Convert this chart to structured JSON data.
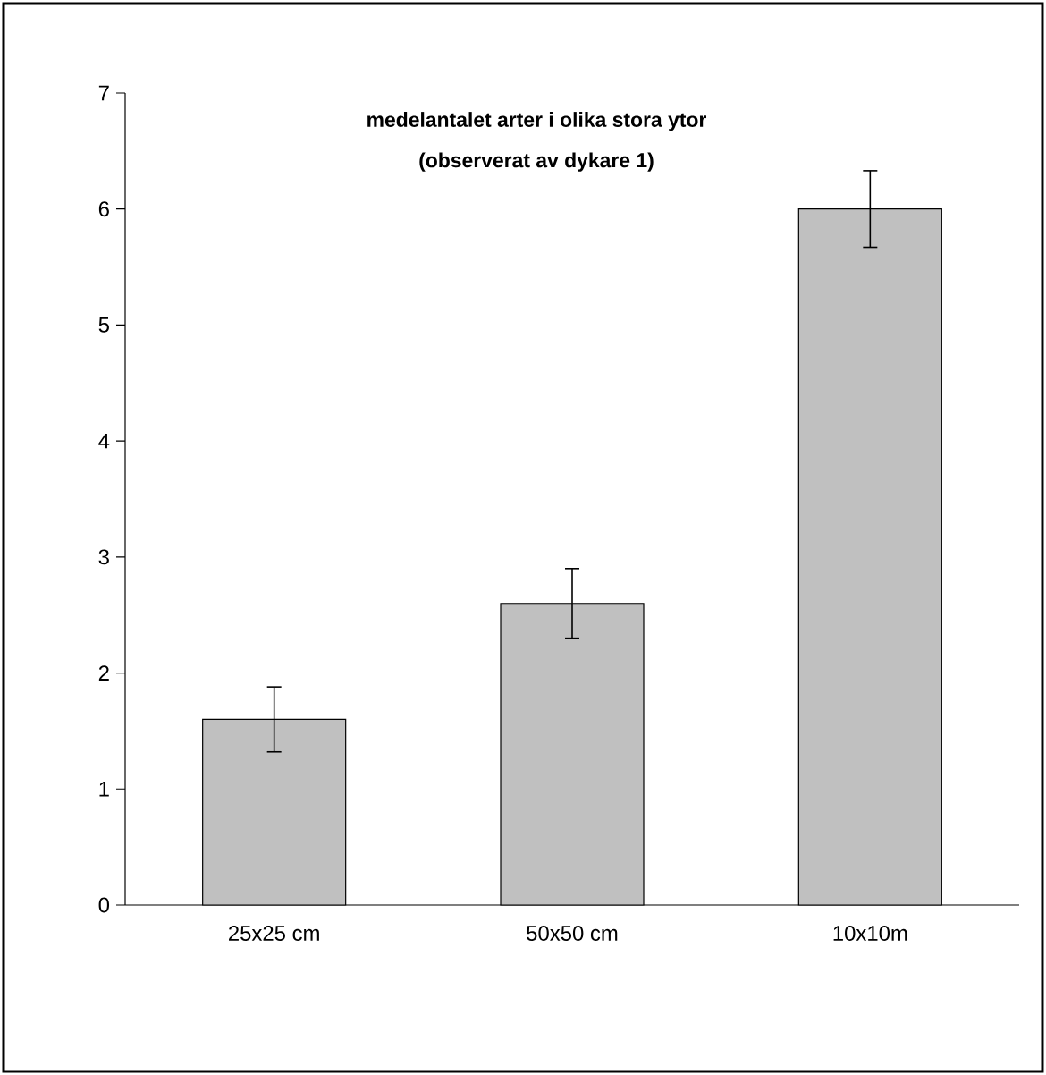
{
  "chart_data": {
    "type": "bar",
    "title": "medelantalet arter i olika stora ytor",
    "subtitle": "(observerat av dykare 1)",
    "categories": [
      "25x25 cm",
      "50x50 cm",
      "10x10m"
    ],
    "values": [
      1.6,
      2.6,
      6.0
    ],
    "errors": [
      0.28,
      0.3,
      0.33
    ],
    "color": "#c0c0c0",
    "ylim": [
      0,
      7
    ],
    "yticks": [
      0,
      1,
      2,
      3,
      4,
      5,
      6,
      7
    ]
  }
}
